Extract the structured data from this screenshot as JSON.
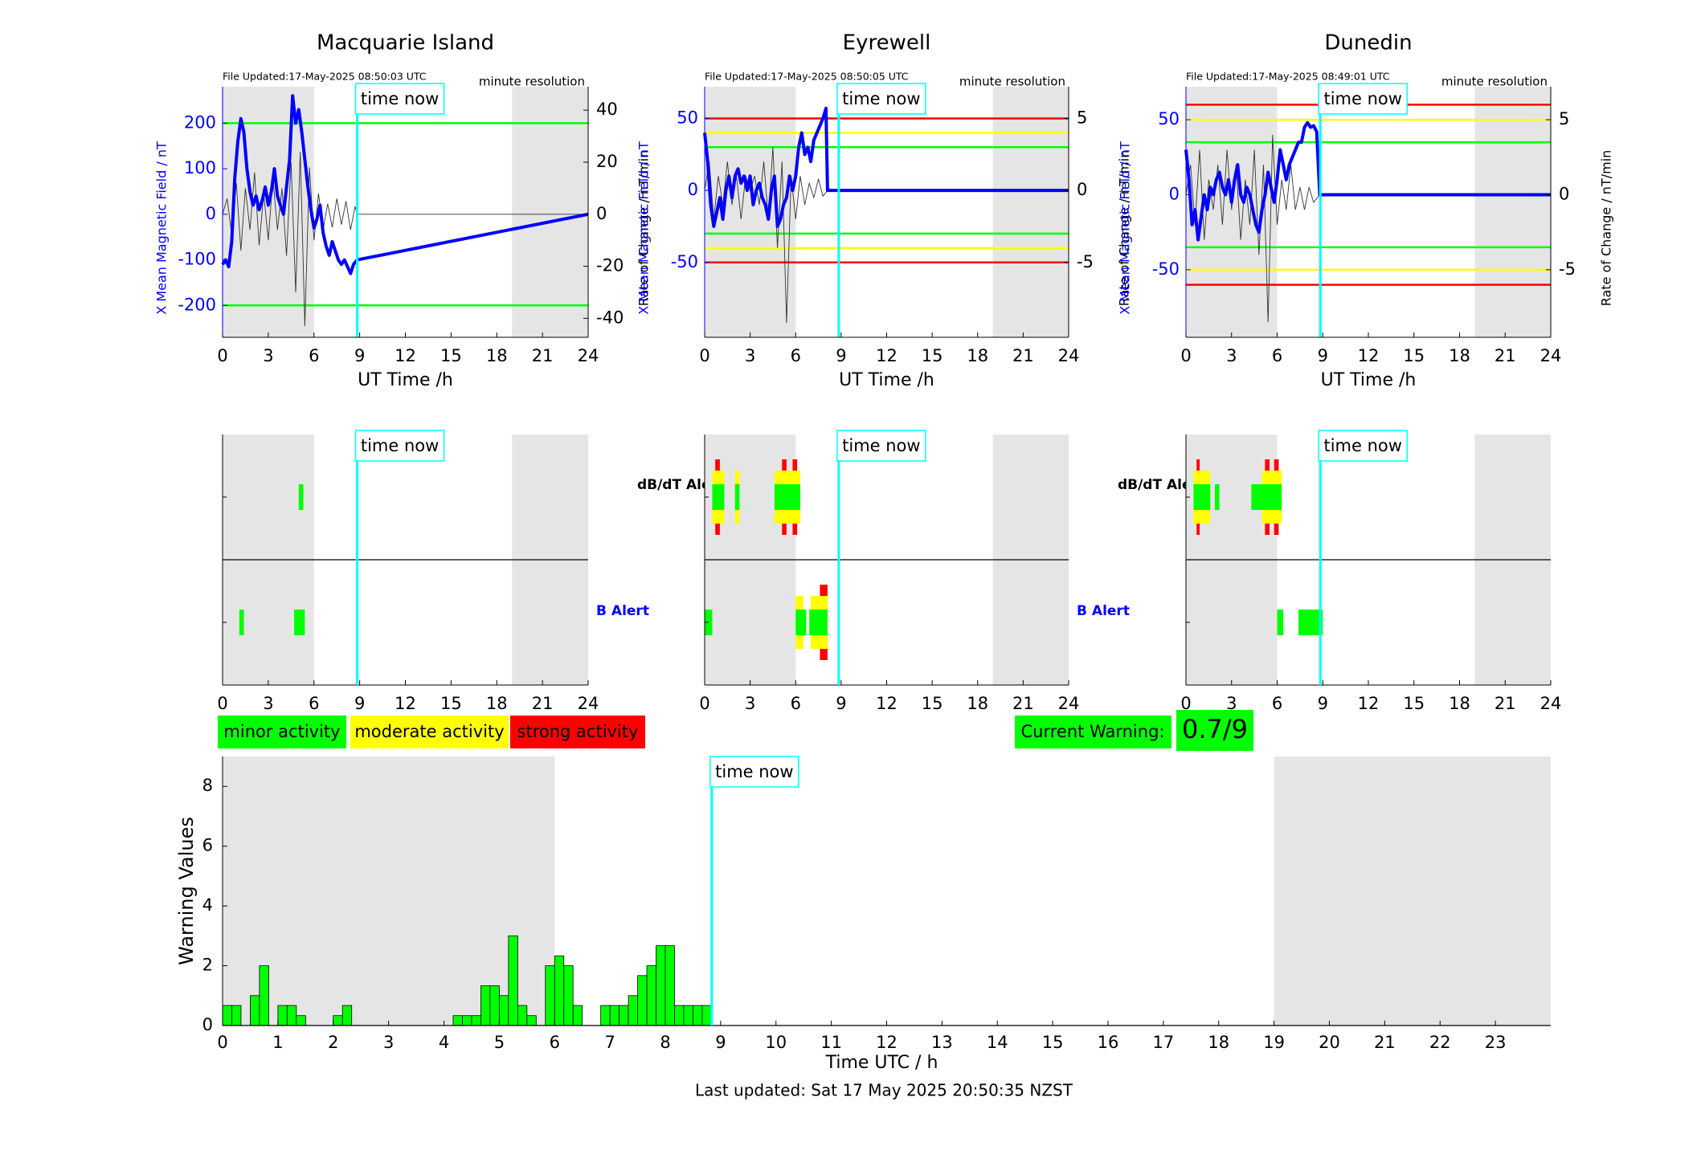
{
  "figure": {
    "footer": "Last updated: Sat 17 May 2025 20:50:35 NZST",
    "time_now_label": "time now",
    "time_now_hour": 8.84
  },
  "colors": {
    "blue": "#0000ff",
    "minor": "#00ff00",
    "moderate": "#ffff00",
    "strong": "#ff0000",
    "time_now": "#00ffff",
    "night_shade": "#e5e5e5"
  },
  "legend": {
    "minor": "minor activity",
    "moderate": "moderate activity",
    "strong": "strong activity"
  },
  "current_warning": {
    "label": "Current Warning:",
    "value": "0.7/9"
  },
  "chart_data": [
    {
      "type": "line",
      "station": "Macquarie Island",
      "title": "Macquarie Island",
      "file_updated": "File Updated:17-May-2025 08:50:03 UTC",
      "resolution": "minute resolution",
      "xlabel": "UT Time /h",
      "ylabel": "X Mean Magnetic Field / nT",
      "y2label": "Rate of Change / nT/min",
      "xlim": [
        0,
        24
      ],
      "ylim": [
        -270,
        280
      ],
      "y2lim": [
        -47.3,
        49
      ],
      "xticks": [
        "0",
        "3",
        "6",
        "9",
        "12",
        "15",
        "18",
        "21",
        "24"
      ],
      "yticks": [
        -200,
        -100,
        0,
        100,
        200
      ],
      "y2ticks": [
        -40,
        -20,
        0,
        20,
        40
      ],
      "shade": [
        [
          0,
          6
        ],
        [
          19,
          24
        ]
      ],
      "thresholds": [
        {
          "value": 200,
          "level": "minor"
        },
        {
          "value": -200,
          "level": "minor"
        }
      ],
      "series": [
        {
          "axis": "left",
          "x": [
            0,
            0.2,
            0.4,
            0.6,
            0.8,
            1.0,
            1.2,
            1.4,
            1.6,
            1.8,
            2.0,
            2.2,
            2.4,
            2.6,
            2.8,
            3.0,
            3.2,
            3.4,
            3.6,
            3.8,
            4.0,
            4.2,
            4.4,
            4.6,
            4.8,
            5.0,
            5.2,
            5.4,
            5.6,
            5.8,
            6.0,
            6.2,
            6.4,
            6.6,
            6.8,
            7.0,
            7.2,
            7.4,
            7.6,
            7.8,
            8.0,
            8.2,
            8.4,
            8.6,
            8.84,
            24
          ],
          "y": [
            -110,
            -100,
            -115,
            -60,
            80,
            160,
            210,
            180,
            100,
            50,
            20,
            40,
            10,
            30,
            60,
            20,
            50,
            100,
            40,
            20,
            0,
            60,
            120,
            260,
            200,
            230,
            180,
            120,
            60,
            10,
            -30,
            -10,
            20,
            -40,
            -70,
            -90,
            -60,
            -80,
            -100,
            -110,
            -100,
            -115,
            -130,
            -110,
            -100,
            0
          ]
        },
        {
          "axis": "right",
          "x": [
            0,
            0.3,
            0.6,
            0.9,
            1.2,
            1.5,
            1.8,
            2.1,
            2.4,
            2.7,
            3.0,
            3.3,
            3.6,
            3.9,
            4.2,
            4.5,
            4.8,
            5.1,
            5.4,
            5.7,
            6.0,
            6.3,
            6.6,
            6.9,
            7.2,
            7.5,
            7.8,
            8.1,
            8.4,
            8.7,
            8.84,
            24
          ],
          "y": [
            0,
            6,
            -8,
            12,
            -14,
            10,
            -6,
            16,
            -12,
            8,
            -10,
            14,
            -6,
            10,
            -16,
            20,
            -30,
            24,
            -43,
            18,
            -10,
            8,
            -6,
            4,
            -5,
            6,
            -4,
            5,
            -6,
            3,
            0,
            0
          ]
        }
      ]
    },
    {
      "type": "line",
      "station": "Eyrewell",
      "title": "Eyrewell",
      "file_updated": "File Updated:17-May-2025 08:50:05 UTC",
      "resolution": "minute resolution",
      "xlabel": "UT Time /h",
      "ylabel": "X Mean Magnetic Field / nT",
      "y2label": "Rate of Change / nT/min",
      "xlim": [
        0,
        24
      ],
      "ylim": [
        -102,
        72
      ],
      "y2lim": [
        -10.2,
        7.2
      ],
      "xticks": [
        "0",
        "3",
        "6",
        "9",
        "12",
        "15",
        "18",
        "21",
        "24"
      ],
      "yticks": [
        -50,
        0,
        50
      ],
      "y2ticks": [
        -5,
        0,
        5
      ],
      "shade": [
        [
          0,
          6
        ],
        [
          19,
          24
        ]
      ],
      "thresholds": [
        {
          "value": 50,
          "level": "strong"
        },
        {
          "value": 40,
          "level": "moderate"
        },
        {
          "value": 30,
          "level": "minor"
        },
        {
          "value": -30,
          "level": "minor"
        },
        {
          "value": -40,
          "level": "moderate"
        },
        {
          "value": -50,
          "level": "strong"
        }
      ],
      "series": [
        {
          "axis": "left",
          "x": [
            0,
            0.2,
            0.4,
            0.6,
            0.8,
            1.0,
            1.2,
            1.4,
            1.6,
            1.8,
            2.0,
            2.2,
            2.4,
            2.6,
            2.8,
            3.0,
            3.2,
            3.4,
            3.6,
            3.8,
            4.0,
            4.2,
            4.4,
            4.6,
            4.8,
            5.0,
            5.2,
            5.4,
            5.6,
            5.8,
            6.0,
            6.2,
            6.4,
            6.6,
            6.8,
            7.0,
            7.2,
            7.4,
            7.6,
            7.8,
            8.0,
            8.1,
            24
          ],
          "y": [
            40,
            20,
            -10,
            -25,
            -15,
            -5,
            -20,
            0,
            10,
            -5,
            10,
            15,
            5,
            10,
            0,
            10,
            -10,
            0,
            5,
            -5,
            -10,
            -20,
            0,
            10,
            -25,
            -20,
            -10,
            -5,
            10,
            0,
            10,
            30,
            40,
            25,
            30,
            20,
            35,
            40,
            45,
            50,
            57,
            0,
            0
          ]
        },
        {
          "axis": "right",
          "x": [
            0,
            0.3,
            0.6,
            0.9,
            1.2,
            1.5,
            1.8,
            2.1,
            2.4,
            2.7,
            3.0,
            3.3,
            3.6,
            3.9,
            4.2,
            4.5,
            4.8,
            5.1,
            5.4,
            5.7,
            6.0,
            6.3,
            6.6,
            6.9,
            7.2,
            7.5,
            7.8,
            8.1,
            24
          ],
          "y": [
            0,
            2,
            -2,
            1,
            -1,
            2,
            -1,
            1,
            -2,
            1,
            0,
            1,
            -1,
            2,
            -2,
            3,
            -4,
            2,
            -9.2,
            1,
            -2,
            1,
            -1,
            0.5,
            -0.5,
            0.8,
            -0.4,
            0,
            0
          ]
        }
      ]
    },
    {
      "type": "line",
      "station": "Dunedin",
      "title": "Dunedin",
      "file_updated": "File Updated:17-May-2025 08:49:01 UTC",
      "resolution": "minute resolution",
      "xlabel": "UT Time /h",
      "ylabel": "X Mean Magnetic Field / nT",
      "y2label": "Rate of Change / nT/min",
      "xlim": [
        0,
        24
      ],
      "ylim": [
        -95,
        72
      ],
      "y2lim": [
        -9.5,
        7.2
      ],
      "xticks": [
        "0",
        "3",
        "6",
        "9",
        "12",
        "15",
        "18",
        "21",
        "24"
      ],
      "yticks": [
        -50,
        0,
        50
      ],
      "y2ticks": [
        -5,
        0,
        5
      ],
      "shade": [
        [
          0,
          6
        ],
        [
          19,
          24
        ]
      ],
      "thresholds": [
        {
          "value": 60,
          "level": "strong"
        },
        {
          "value": 50,
          "level": "moderate"
        },
        {
          "value": 35,
          "level": "minor"
        },
        {
          "value": -35,
          "level": "minor"
        },
        {
          "value": -50,
          "level": "moderate"
        },
        {
          "value": -60,
          "level": "strong"
        }
      ],
      "series": [
        {
          "axis": "left",
          "x": [
            0,
            0.2,
            0.4,
            0.6,
            0.8,
            1.0,
            1.2,
            1.4,
            1.6,
            1.8,
            2.0,
            2.2,
            2.4,
            2.6,
            2.8,
            3.0,
            3.2,
            3.4,
            3.6,
            3.8,
            4.0,
            4.2,
            4.4,
            4.6,
            4.8,
            5.0,
            5.2,
            5.4,
            5.6,
            5.8,
            6.0,
            6.2,
            6.4,
            6.6,
            6.8,
            7.0,
            7.2,
            7.4,
            7.6,
            7.8,
            8.0,
            8.2,
            8.4,
            8.6,
            8.8,
            24
          ],
          "y": [
            30,
            10,
            -20,
            -10,
            -30,
            -15,
            0,
            -10,
            5,
            0,
            10,
            15,
            5,
            0,
            10,
            -5,
            10,
            20,
            0,
            -5,
            5,
            0,
            -10,
            -20,
            -25,
            -10,
            0,
            15,
            5,
            -5,
            10,
            30,
            20,
            10,
            20,
            25,
            30,
            35,
            35,
            45,
            48,
            45,
            46,
            42,
            0,
            0
          ]
        },
        {
          "axis": "right",
          "x": [
            0,
            0.3,
            0.6,
            0.9,
            1.2,
            1.5,
            1.8,
            2.1,
            2.4,
            2.7,
            3.0,
            3.3,
            3.6,
            3.9,
            4.2,
            4.5,
            4.8,
            5.1,
            5.4,
            5.7,
            6.0,
            6.3,
            6.6,
            6.9,
            7.2,
            7.5,
            7.8,
            8.1,
            8.4,
            8.8,
            24
          ],
          "y": [
            0,
            2,
            -2,
            3,
            -3,
            1,
            -1,
            2,
            -2,
            3,
            -1,
            2,
            -3,
            1,
            -2,
            3,
            -4,
            2,
            -8.5,
            4,
            -2,
            1,
            -1,
            2,
            -1,
            0.5,
            -1,
            0.5,
            -0.5,
            0,
            0
          ]
        }
      ]
    },
    {
      "type": "alert-timeline",
      "station": "Macquarie Island",
      "rows": [
        "dB/dT Alert",
        "B Alert"
      ],
      "xlim": [
        0,
        24
      ],
      "xticks": [
        "0",
        "3",
        "6",
        "9",
        "12",
        "15",
        "18",
        "21",
        "24"
      ],
      "shade": [
        [
          0,
          6
        ],
        [
          19,
          24
        ]
      ],
      "dbdt_blocks": [
        {
          "start": 5.0,
          "end": 5.3,
          "level": "minor"
        }
      ],
      "b_blocks": [
        {
          "start": 1.1,
          "end": 1.4,
          "level": "minor"
        },
        {
          "start": 4.7,
          "end": 5.4,
          "level": "minor"
        }
      ]
    },
    {
      "type": "alert-timeline",
      "station": "Eyrewell",
      "rows": [
        "dB/dT Alert",
        "B Alert"
      ],
      "xlim": [
        0,
        24
      ],
      "xticks": [
        "0",
        "3",
        "6",
        "9",
        "12",
        "15",
        "18",
        "21",
        "24"
      ],
      "shade": [
        [
          0,
          6
        ],
        [
          19,
          24
        ]
      ],
      "dbdt_blocks": [
        {
          "start": 0.7,
          "end": 1.0,
          "level": "strong"
        },
        {
          "start": 0.5,
          "end": 1.3,
          "level": "moderate"
        },
        {
          "start": 0.5,
          "end": 1.3,
          "level": "minor"
        },
        {
          "start": 2.0,
          "end": 2.3,
          "level": "moderate"
        },
        {
          "start": 2.0,
          "end": 2.3,
          "level": "minor"
        },
        {
          "start": 5.1,
          "end": 5.4,
          "level": "strong"
        },
        {
          "start": 5.8,
          "end": 6.1,
          "level": "strong"
        },
        {
          "start": 4.6,
          "end": 6.3,
          "level": "moderate"
        },
        {
          "start": 4.6,
          "end": 6.3,
          "level": "minor"
        }
      ],
      "b_blocks": [
        {
          "start": 0.0,
          "end": 0.5,
          "level": "minor"
        },
        {
          "start": 7.6,
          "end": 8.1,
          "level": "strong"
        },
        {
          "start": 6.0,
          "end": 6.5,
          "level": "moderate"
        },
        {
          "start": 7.0,
          "end": 8.1,
          "level": "moderate"
        },
        {
          "start": 6.0,
          "end": 6.7,
          "level": "minor"
        },
        {
          "start": 6.9,
          "end": 8.1,
          "level": "minor"
        }
      ]
    },
    {
      "type": "alert-timeline",
      "station": "Dunedin",
      "rows": [
        "dB/dT Alert",
        "B Alert"
      ],
      "xlim": [
        0,
        24
      ],
      "xticks": [
        "0",
        "3",
        "6",
        "9",
        "12",
        "15",
        "18",
        "21",
        "24"
      ],
      "shade": [
        [
          0,
          6
        ],
        [
          19,
          24
        ]
      ],
      "dbdt_blocks": [
        {
          "start": 0.7,
          "end": 0.9,
          "level": "strong"
        },
        {
          "start": 5.2,
          "end": 5.5,
          "level": "strong"
        },
        {
          "start": 5.8,
          "end": 6.1,
          "level": "strong"
        },
        {
          "start": 0.5,
          "end": 1.6,
          "level": "moderate"
        },
        {
          "start": 5.0,
          "end": 6.3,
          "level": "moderate"
        },
        {
          "start": 0.5,
          "end": 1.6,
          "level": "minor"
        },
        {
          "start": 1.9,
          "end": 2.2,
          "level": "minor"
        },
        {
          "start": 4.3,
          "end": 6.3,
          "level": "minor"
        }
      ],
      "b_blocks": [
        {
          "start": 6.0,
          "end": 6.4,
          "level": "minor"
        },
        {
          "start": 7.4,
          "end": 9.0,
          "level": "minor"
        }
      ]
    },
    {
      "type": "bar",
      "title": "",
      "xlabel": "Time UTC / h",
      "ylabel": "Warning Values",
      "xlim": [
        0,
        24
      ],
      "ylim": [
        0,
        9
      ],
      "xticks": [
        "0",
        "1",
        "2",
        "3",
        "4",
        "5",
        "6",
        "7",
        "8",
        "9",
        "10",
        "11",
        "12",
        "13",
        "14",
        "15",
        "16",
        "17",
        "18",
        "19",
        "20",
        "21",
        "22",
        "23"
      ],
      "yticks": [
        0,
        2,
        4,
        6,
        8
      ],
      "shade": [
        [
          0,
          6
        ],
        [
          19,
          24
        ]
      ],
      "bar_width": 0.1667,
      "x": [
        0.0833,
        0.25,
        0.5833,
        0.75,
        1.0833,
        1.25,
        1.4167,
        2.0833,
        2.25,
        4.25,
        4.4167,
        4.5833,
        4.75,
        4.9167,
        5.0833,
        5.25,
        5.4167,
        5.5833,
        5.9167,
        6.0833,
        6.25,
        6.4167,
        6.9167,
        7.0833,
        7.25,
        7.4167,
        7.5833,
        7.75,
        7.9167,
        8.0833,
        8.25,
        8.4167,
        8.5833,
        8.75
      ],
      "values": [
        0.67,
        0.67,
        1.0,
        2.0,
        0.67,
        0.67,
        0.33,
        0.33,
        0.67,
        0.33,
        0.33,
        0.33,
        1.33,
        1.33,
        1.0,
        3.0,
        0.67,
        0.33,
        2.0,
        2.33,
        2.0,
        0.67,
        0.67,
        0.67,
        0.67,
        1.0,
        1.67,
        2.0,
        2.67,
        2.67,
        0.67,
        0.67,
        0.67,
        0.67
      ]
    }
  ]
}
